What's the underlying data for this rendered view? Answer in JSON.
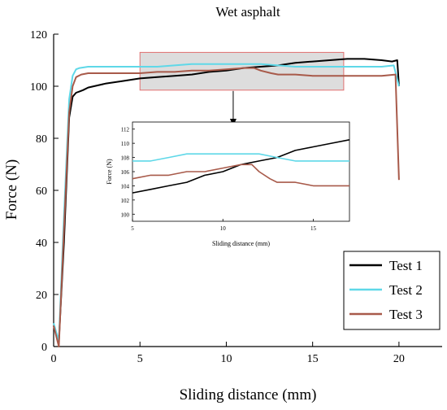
{
  "chart_data": {
    "type": "line",
    "title": "Wet asphalt",
    "xlabel": "Sliding distance (mm)",
    "ylabel": "Force (N)",
    "xlim": [
      0,
      22.5
    ],
    "ylim": [
      0,
      120
    ],
    "xticks": [
      0,
      5,
      10,
      15,
      20
    ],
    "yticks": [
      0,
      20,
      40,
      60,
      80,
      100,
      120
    ],
    "grid": false,
    "legend_position": "bottom-right",
    "series": [
      {
        "name": "Test 1",
        "color": "#000000",
        "x": [
          0,
          0.3,
          0.6,
          0.9,
          1.1,
          1.3,
          1.5,
          1.7,
          2,
          3,
          4,
          5,
          6,
          7,
          8,
          9,
          10,
          11,
          12,
          13,
          14,
          15,
          16,
          17,
          18,
          19,
          19.6,
          19.9,
          20.0
        ],
        "values": [
          8,
          2,
          40,
          88,
          96,
          97.5,
          98,
          98.5,
          99.5,
          101,
          102,
          103,
          103.5,
          104,
          104.5,
          105.5,
          106,
          107,
          107.5,
          108,
          109,
          109.5,
          110,
          110.5,
          110.5,
          110,
          109.5,
          110,
          100
        ]
      },
      {
        "name": "Test 2",
        "color": "#5fd8e8",
        "x": [
          0,
          0.3,
          0.6,
          0.9,
          1.1,
          1.3,
          1.5,
          2,
          3,
          4,
          5,
          6,
          7,
          8,
          9,
          10,
          11,
          12,
          13,
          14,
          15,
          16,
          17,
          18,
          19,
          19.7,
          20.0
        ],
        "values": [
          9,
          2,
          50,
          95,
          104,
          106.5,
          107,
          107.5,
          107.5,
          107.5,
          107.5,
          107.5,
          108,
          108.5,
          108.5,
          108.5,
          108.5,
          108.5,
          108,
          107.5,
          107.5,
          107.5,
          107.5,
          107.5,
          107.5,
          108,
          100
        ]
      },
      {
        "name": "Test 3",
        "color": "#a85a4a",
        "x": [
          0,
          0.3,
          0.6,
          0.9,
          1.1,
          1.3,
          1.6,
          2,
          3,
          4,
          5,
          6,
          7,
          8,
          9,
          10,
          11,
          11.6,
          12,
          12.6,
          13,
          14,
          15,
          16,
          17,
          18,
          19,
          19.8,
          20.0
        ],
        "values": [
          8,
          0,
          45,
          90,
          100,
          103.5,
          104.5,
          105,
          105,
          105,
          105,
          105.5,
          105.5,
          106,
          106,
          106.5,
          107,
          107,
          106,
          105,
          104.5,
          104.5,
          104,
          104,
          104,
          104,
          104,
          104.5,
          64
        ]
      }
    ],
    "inset": {
      "xlabel": "Sliding distance (mm)",
      "ylabel": "Force (N)",
      "xlim": [
        5,
        17
      ],
      "ylim": [
        99,
        113
      ],
      "xticks": [
        5,
        10,
        15
      ],
      "yticks": [
        100,
        102,
        104,
        106,
        108,
        110,
        112
      ],
      "zoom_region": {
        "x": [
          5,
          16.8
        ],
        "y": [
          98.5,
          113
        ]
      }
    }
  },
  "legend_labels": [
    "Test 1",
    "Test 2",
    "Test 3"
  ]
}
